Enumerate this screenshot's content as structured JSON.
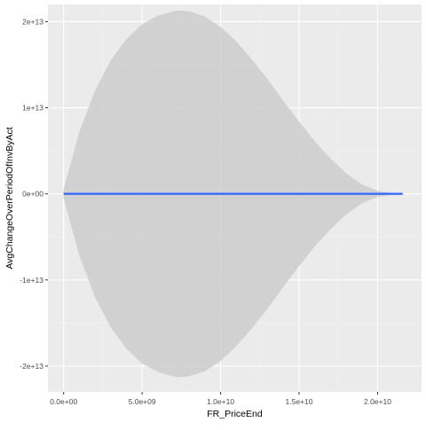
{
  "chart_data": {
    "type": "line",
    "xlabel": "FR_PriceEnd",
    "ylabel": "AvgChangeOverPeriodOfInvByAct",
    "xlim": [
      -1000000000.0,
      22800000000.0
    ],
    "ylim": [
      -23000000000000.0,
      22000000000000.0
    ],
    "x_ticks": [
      {
        "value": 0,
        "label": "0.0e+00"
      },
      {
        "value": 5000000000.0,
        "label": "5.0e+09"
      },
      {
        "value": 10000000000.0,
        "label": "1.0e+10"
      },
      {
        "value": 15000000000.0,
        "label": "1.5e+10"
      },
      {
        "value": 20000000000.0,
        "label": "2.0e+10"
      }
    ],
    "y_ticks": [
      {
        "value": 20000000000000.0,
        "label": "2e+13"
      },
      {
        "value": 10000000000000.0,
        "label": "1e+13"
      },
      {
        "value": 0,
        "label": "0e+00"
      },
      {
        "value": -10000000000000.0,
        "label": "-1e+13"
      },
      {
        "value": -20000000000000.0,
        "label": "-2e+13"
      }
    ],
    "series": [
      {
        "kind": "smooth-fit",
        "x": [
          0,
          21600000000.0
        ],
        "y": [
          0,
          0
        ],
        "color": "#3366ff"
      }
    ],
    "confidence_band": {
      "color": "#cccccc",
      "x": [
        0,
        1000000000.0,
        2000000000.0,
        3000000000.0,
        4000000000.0,
        5000000000.0,
        6000000000.0,
        7000000000.0,
        7400000000.0,
        8000000000.0,
        9000000000.0,
        10000000000.0,
        11000000000.0,
        12000000000.0,
        13000000000.0,
        14000000000.0,
        15000000000.0,
        16000000000.0,
        17000000000.0,
        18000000000.0,
        19000000000.0,
        20000000000.0,
        21000000000.0,
        21600000000.0
      ],
      "upper": [
        500000000000.0,
        7200000000000.0,
        12000000000000.0,
        15500000000000.0,
        18000000000000.0,
        19700000000000.0,
        20700000000000.0,
        21200000000000.0,
        21300000000000.0,
        21200000000000.0,
        20600000000000.0,
        19400000000000.0,
        17700000000000.0,
        15600000000000.0,
        13300000000000.0,
        10800000000000.0,
        8400000000000.0,
        6100000000000.0,
        4100000000000.0,
        2400000000000.0,
        1100000000000.0,
        350000000000.0,
        80000000000.0,
        0.0
      ],
      "lower": [
        -500000000000.0,
        -7200000000000.0,
        -12000000000000.0,
        -15500000000000.0,
        -18000000000000.0,
        -19700000000000.0,
        -20700000000000.0,
        -21200000000000.0,
        -21300000000000.0,
        -21200000000000.0,
        -20600000000000.0,
        -19400000000000.0,
        -17700000000000.0,
        -15600000000000.0,
        -13300000000000.0,
        -10800000000000.0,
        -8400000000000.0,
        -6100000000000.0,
        -4100000000000.0,
        -2400000000000.0,
        -1100000000000.0,
        -350000000000.0,
        -80000000000.0,
        0.0
      ]
    },
    "grid": true,
    "theme": {
      "panel_background": "#ebebeb",
      "grid_major": "#ffffff",
      "grid_minor": "#f2f2f2"
    }
  }
}
